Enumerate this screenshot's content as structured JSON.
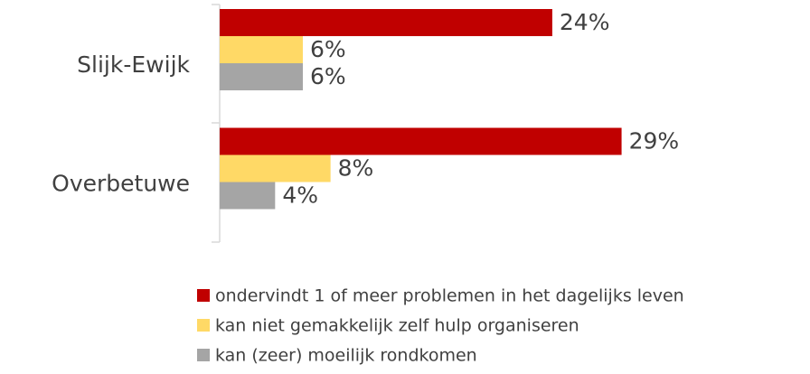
{
  "chart_data": {
    "type": "bar",
    "orientation": "horizontal",
    "categories": [
      "Slijk-Ewijk",
      "Overbetuwe"
    ],
    "series": [
      {
        "name": "ondervindt 1 of meer problemen in het dagelijks leven",
        "color": "#c00000",
        "values": [
          24,
          29
        ],
        "value_labels": [
          "24%",
          "29%"
        ]
      },
      {
        "name": "kan niet gemakkelijk zelf hulp organiseren",
        "color": "#ffd966",
        "values": [
          6,
          8
        ],
        "value_labels": [
          "6%",
          "8%"
        ]
      },
      {
        "name": "kan (zeer) moeilijk rondkomen",
        "color": "#a5a5a5",
        "values": [
          6,
          4
        ],
        "value_labels": [
          "6%",
          "4%"
        ]
      }
    ],
    "legend": "bottom"
  }
}
